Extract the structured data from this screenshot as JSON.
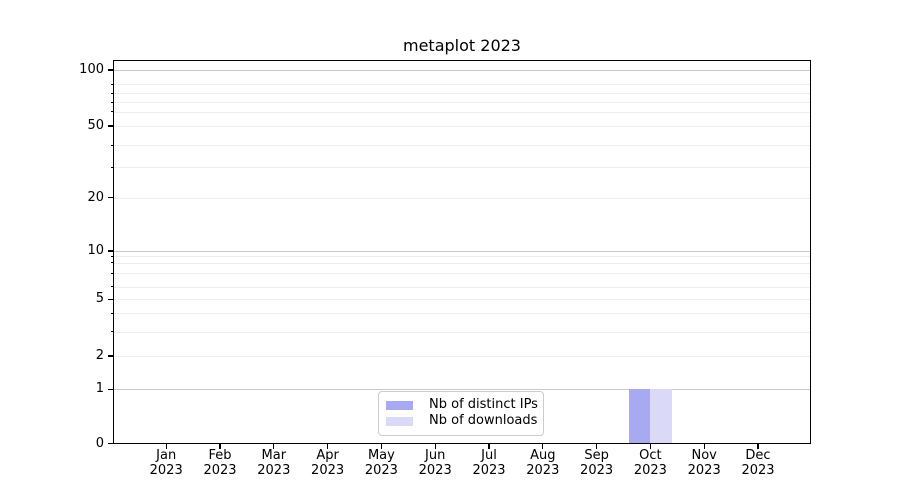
{
  "figure": {
    "title": "metaplot 2023"
  },
  "chart_data": {
    "type": "bar",
    "title": "metaplot 2023",
    "x_axis": {
      "months": [
        "Jan",
        "Feb",
        "Mar",
        "Apr",
        "May",
        "Jun",
        "Jul",
        "Aug",
        "Sep",
        "Oct",
        "Nov",
        "Dec"
      ],
      "year": "2023"
    },
    "y_axis": {
      "scale": "asinh (log-like above 1, linear 0-1)",
      "tick_labels": [
        "0",
        "1",
        "2",
        "5",
        "10",
        "20",
        "50",
        "100"
      ],
      "major_gridline_values": [
        1,
        10,
        100
      ],
      "minor_gridline_values": [
        2,
        3,
        4,
        5,
        6,
        7,
        8,
        9,
        20,
        30,
        40,
        50,
        60,
        70,
        80,
        90
      ],
      "range": [
        0,
        130
      ]
    },
    "series": [
      {
        "name": "Nb of distinct IPs",
        "color": "#a9a9f2",
        "values": [
          0,
          0,
          0,
          0,
          0,
          0,
          0,
          0,
          0,
          1,
          0,
          0
        ]
      },
      {
        "name": "Nb of downloads",
        "color": "#dadaf8",
        "values": [
          0,
          0,
          0,
          0,
          0,
          0,
          0,
          0,
          0,
          1,
          0,
          0
        ]
      }
    ],
    "legend": {
      "position": "lower center-left inside plot",
      "entries": [
        "Nb of distinct IPs",
        "Nb of downloads"
      ]
    },
    "grid": "horizontal only",
    "colors": {
      "major_grid": "#c9c9c9",
      "minor_grid": "#ededed",
      "spine": "#000000",
      "text": "#000000",
      "legend_border": "#cccccc",
      "background": "#ffffff"
    }
  }
}
